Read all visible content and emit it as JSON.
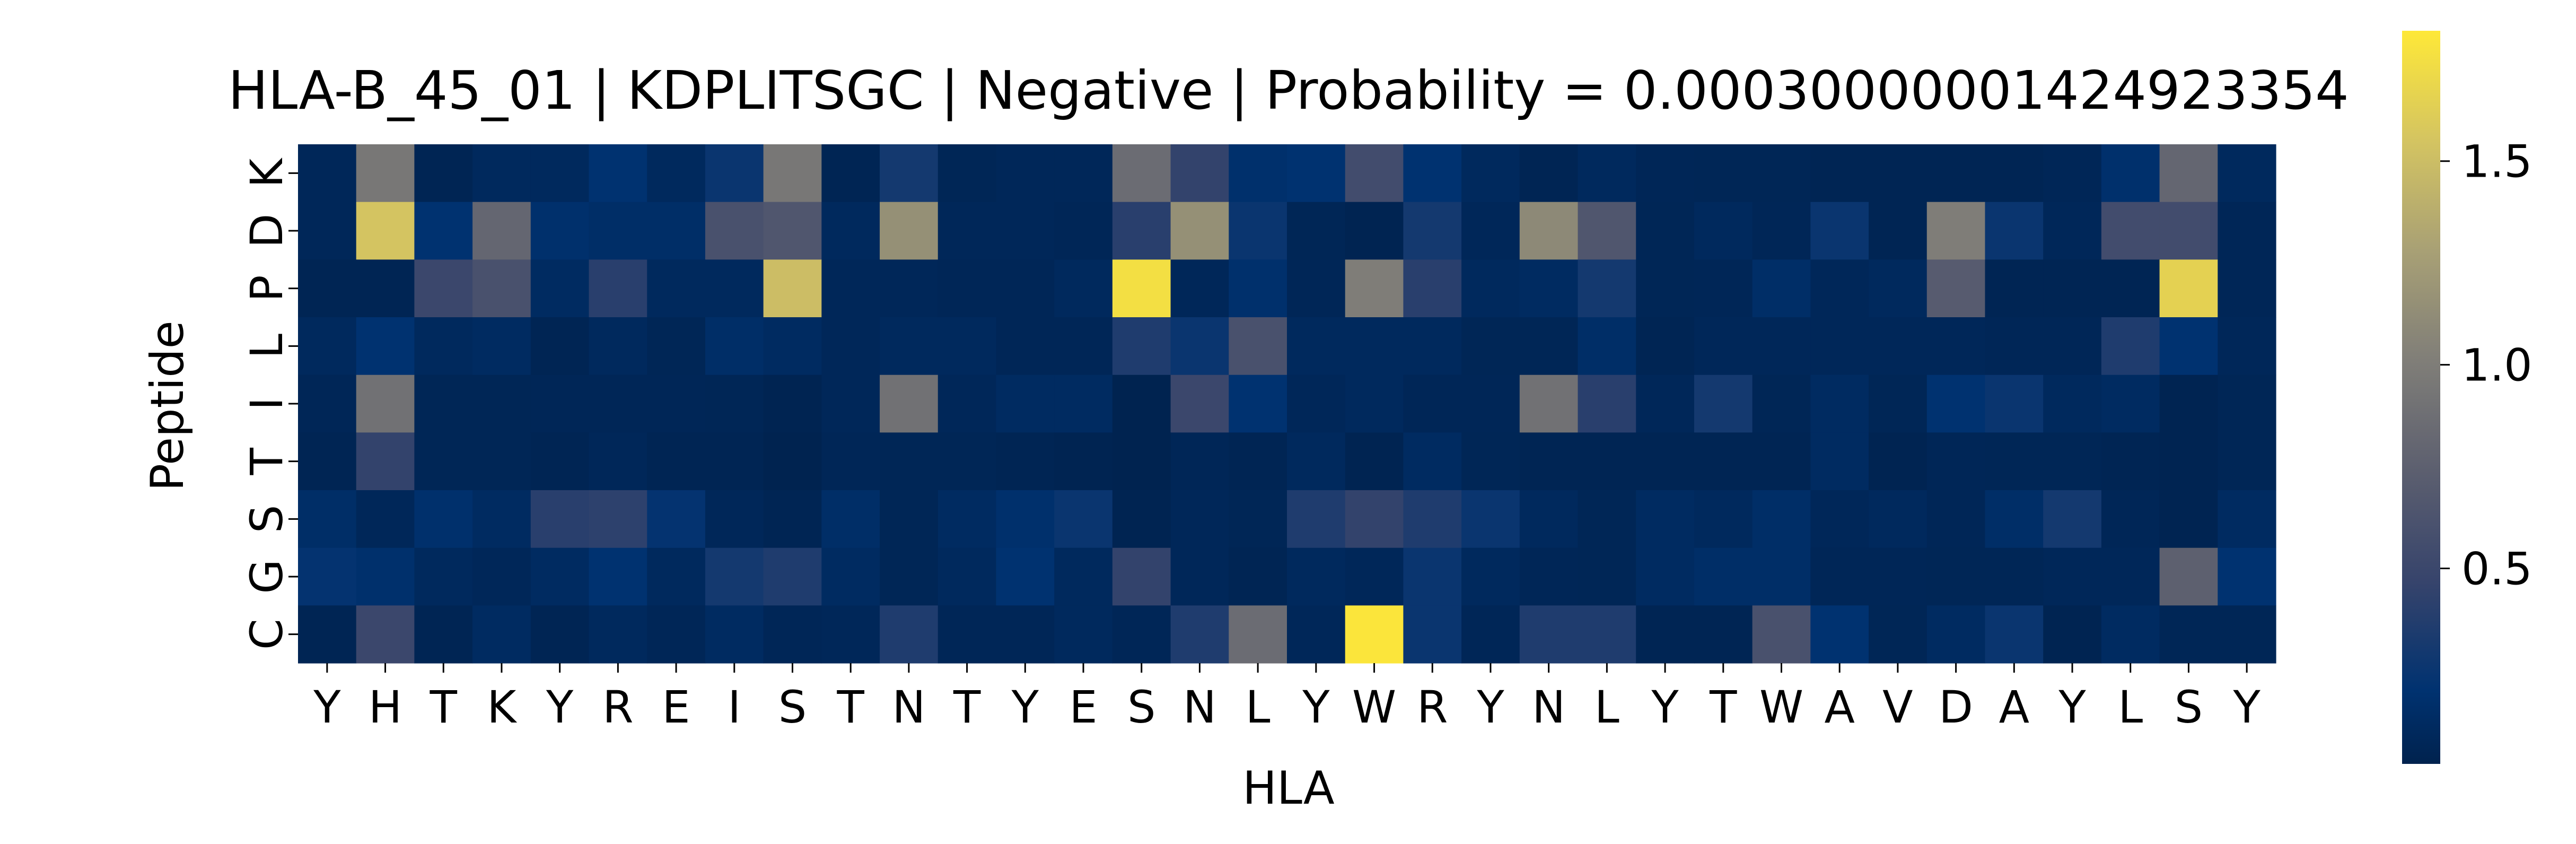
{
  "chart_data": {
    "type": "heatmap",
    "title": "HLA-B_45_01 | KDPLITSGC | Negative | Probability = 0.00030000001424923354",
    "xlabel": "HLA",
    "ylabel": "Peptide",
    "x_categories": [
      "Y",
      "H",
      "T",
      "K",
      "Y",
      "R",
      "E",
      "I",
      "S",
      "T",
      "N",
      "T",
      "Y",
      "E",
      "S",
      "N",
      "L",
      "Y",
      "W",
      "R",
      "Y",
      "N",
      "L",
      "Y",
      "T",
      "W",
      "A",
      "V",
      "D",
      "A",
      "Y",
      "L",
      "S",
      "Y"
    ],
    "y_categories": [
      "K",
      "D",
      "P",
      "L",
      "I",
      "T",
      "S",
      "G",
      "C"
    ],
    "values": [
      [
        0.08,
        0.95,
        0.05,
        0.1,
        0.1,
        0.2,
        0.1,
        0.25,
        0.95,
        0.05,
        0.3,
        0.06,
        0.08,
        0.08,
        0.85,
        0.45,
        0.18,
        0.2,
        0.55,
        0.2,
        0.1,
        0.05,
        0.1,
        0.07,
        0.06,
        0.06,
        0.05,
        0.05,
        0.05,
        0.05,
        0.07,
        0.18,
        0.8,
        0.1
      ],
      [
        0.08,
        1.55,
        0.2,
        0.8,
        0.18,
        0.15,
        0.15,
        0.6,
        0.65,
        0.1,
        1.15,
        0.08,
        0.08,
        0.07,
        0.4,
        1.15,
        0.25,
        0.06,
        0.04,
        0.3,
        0.08,
        1.1,
        0.65,
        0.06,
        0.1,
        0.07,
        0.25,
        0.05,
        1.0,
        0.25,
        0.08,
        0.55,
        0.55,
        0.07
      ],
      [
        0.05,
        0.05,
        0.5,
        0.6,
        0.12,
        0.4,
        0.1,
        0.1,
        1.5,
        0.08,
        0.08,
        0.07,
        0.07,
        0.1,
        1.75,
        0.08,
        0.18,
        0.07,
        1.0,
        0.4,
        0.1,
        0.12,
        0.3,
        0.06,
        0.07,
        0.15,
        0.08,
        0.1,
        0.7,
        0.05,
        0.05,
        0.05,
        1.65,
        0.07
      ],
      [
        0.1,
        0.2,
        0.1,
        0.12,
        0.05,
        0.1,
        0.06,
        0.15,
        0.12,
        0.08,
        0.1,
        0.1,
        0.07,
        0.07,
        0.35,
        0.25,
        0.6,
        0.1,
        0.1,
        0.1,
        0.06,
        0.06,
        0.15,
        0.05,
        0.08,
        0.08,
        0.08,
        0.08,
        0.08,
        0.07,
        0.07,
        0.35,
        0.2,
        0.08
      ],
      [
        0.07,
        0.9,
        0.06,
        0.06,
        0.07,
        0.07,
        0.07,
        0.06,
        0.04,
        0.08,
        0.9,
        0.08,
        0.12,
        0.12,
        0.03,
        0.5,
        0.2,
        0.08,
        0.1,
        0.07,
        0.07,
        0.9,
        0.4,
        0.08,
        0.3,
        0.06,
        0.12,
        0.06,
        0.2,
        0.25,
        0.1,
        0.12,
        0.04,
        0.06
      ],
      [
        0.05,
        0.45,
        0.06,
        0.06,
        0.05,
        0.08,
        0.05,
        0.05,
        0.03,
        0.07,
        0.06,
        0.06,
        0.05,
        0.04,
        0.03,
        0.07,
        0.05,
        0.1,
        0.04,
        0.12,
        0.06,
        0.05,
        0.05,
        0.05,
        0.05,
        0.05,
        0.12,
        0.04,
        0.07,
        0.06,
        0.06,
        0.05,
        0.04,
        0.06
      ],
      [
        0.15,
        0.08,
        0.18,
        0.12,
        0.4,
        0.42,
        0.22,
        0.08,
        0.05,
        0.15,
        0.06,
        0.12,
        0.18,
        0.25,
        0.04,
        0.08,
        0.06,
        0.35,
        0.45,
        0.35,
        0.25,
        0.1,
        0.06,
        0.12,
        0.1,
        0.15,
        0.08,
        0.1,
        0.07,
        0.15,
        0.3,
        0.07,
        0.04,
        0.12
      ],
      [
        0.22,
        0.18,
        0.1,
        0.08,
        0.12,
        0.2,
        0.1,
        0.3,
        0.35,
        0.12,
        0.06,
        0.1,
        0.2,
        0.1,
        0.45,
        0.08,
        0.05,
        0.1,
        0.08,
        0.25,
        0.1,
        0.07,
        0.06,
        0.12,
        0.15,
        0.15,
        0.07,
        0.07,
        0.06,
        0.06,
        0.08,
        0.08,
        0.75,
        0.2
      ],
      [
        0.05,
        0.5,
        0.05,
        0.12,
        0.05,
        0.1,
        0.07,
        0.12,
        0.07,
        0.08,
        0.35,
        0.07,
        0.07,
        0.1,
        0.07,
        0.35,
        0.85,
        0.08,
        1.8,
        0.25,
        0.07,
        0.35,
        0.35,
        0.05,
        0.05,
        0.6,
        0.2,
        0.06,
        0.12,
        0.25,
        0.04,
        0.12,
        0.06,
        0.06
      ]
    ],
    "colormap": "cividis",
    "vmin": 0.02,
    "vmax": 1.82,
    "colorbar_ticks": [
      "0.5",
      "1.0",
      "1.5"
    ],
    "grid": false,
    "legend": "colorbar-right"
  }
}
